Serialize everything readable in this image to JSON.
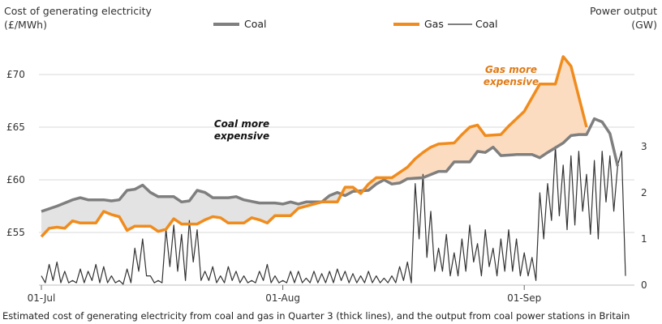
{
  "chart_data": {
    "type": "line",
    "y_left_title": [
      "Cost of generating electricity",
      "(£/MWh)"
    ],
    "y_right_title": [
      "Power output",
      "(GW)"
    ],
    "ylim_left": [
      50,
      72
    ],
    "ylim_right": [
      0,
      3.2
    ],
    "y_left_ticks": [
      {
        "value": 55,
        "label": "£55"
      },
      {
        "value": 60,
        "label": "£60"
      },
      {
        "value": 65,
        "label": "£65"
      },
      {
        "value": 70,
        "label": "£70"
      }
    ],
    "y_right_ticks": [
      {
        "value": 0,
        "label": "0"
      },
      {
        "value": 1,
        "label": "1"
      },
      {
        "value": 2,
        "label": "2"
      },
      {
        "value": 3,
        "label": "3"
      }
    ],
    "x_ticks": [
      {
        "day": 0,
        "label": "01-Jul"
      },
      {
        "day": 31,
        "label": "01-Aug"
      },
      {
        "day": 62,
        "label": "01-Sep"
      }
    ],
    "xlim_days": [
      0,
      76
    ],
    "legend": {
      "coal_cost": "Coal",
      "gas_cost": "Gas",
      "coal_output": "Coal"
    },
    "colors": {
      "coal": "#7f7f7f",
      "gas": "#f08c1e",
      "output": "#333333",
      "coal_expensive_fill": "#e3e3e3",
      "gas_expensive_fill": "#fbdcc0",
      "gas_annotation": "#e07a14"
    },
    "annotations": {
      "coal_more_expensive": [
        "Coal more",
        "expensive"
      ],
      "gas_more_expensive": [
        "Gas more",
        "expensive"
      ]
    },
    "coal_series": [
      {
        "day": 0,
        "value": 57.0
      },
      {
        "day": 2,
        "value": 57.5
      },
      {
        "day": 4,
        "value": 58.1
      },
      {
        "day": 5,
        "value": 58.3
      },
      {
        "day": 6,
        "value": 58.1
      },
      {
        "day": 8,
        "value": 58.1
      },
      {
        "day": 9,
        "value": 58.0
      },
      {
        "day": 10,
        "value": 58.1
      },
      {
        "day": 11,
        "value": 59.0
      },
      {
        "day": 12,
        "value": 59.1
      },
      {
        "day": 13,
        "value": 59.5
      },
      {
        "day": 14,
        "value": 58.8
      },
      {
        "day": 15,
        "value": 58.4
      },
      {
        "day": 17,
        "value": 58.4
      },
      {
        "day": 18,
        "value": 57.9
      },
      {
        "day": 19,
        "value": 58.0
      },
      {
        "day": 20,
        "value": 59.0
      },
      {
        "day": 21,
        "value": 58.8
      },
      {
        "day": 22,
        "value": 58.3
      },
      {
        "day": 24,
        "value": 58.3
      },
      {
        "day": 25,
        "value": 58.4
      },
      {
        "day": 26,
        "value": 58.1
      },
      {
        "day": 28,
        "value": 57.8
      },
      {
        "day": 30,
        "value": 57.8
      },
      {
        "day": 31,
        "value": 57.7
      },
      {
        "day": 32,
        "value": 57.9
      },
      {
        "day": 33,
        "value": 57.7
      },
      {
        "day": 34,
        "value": 57.9
      },
      {
        "day": 36,
        "value": 57.9
      },
      {
        "day": 37,
        "value": 58.5
      },
      {
        "day": 38,
        "value": 58.8
      },
      {
        "day": 39,
        "value": 58.5
      },
      {
        "day": 40,
        "value": 58.9
      },
      {
        "day": 42,
        "value": 59.0
      },
      {
        "day": 43,
        "value": 59.6
      },
      {
        "day": 44,
        "value": 60.0
      },
      {
        "day": 45,
        "value": 59.6
      },
      {
        "day": 46,
        "value": 59.7
      },
      {
        "day": 47,
        "value": 60.1
      },
      {
        "day": 49,
        "value": 60.2
      },
      {
        "day": 50,
        "value": 60.5
      },
      {
        "day": 51,
        "value": 60.8
      },
      {
        "day": 52,
        "value": 60.8
      },
      {
        "day": 53,
        "value": 61.7
      },
      {
        "day": 55,
        "value": 61.7
      },
      {
        "day": 56,
        "value": 62.7
      },
      {
        "day": 57,
        "value": 62.6
      },
      {
        "day": 58,
        "value": 63.1
      },
      {
        "day": 59,
        "value": 62.3
      },
      {
        "day": 61,
        "value": 62.4
      },
      {
        "day": 62,
        "value": 62.4
      },
      {
        "day": 63,
        "value": 62.4
      },
      {
        "day": 64,
        "value": 62.1
      },
      {
        "day": 65,
        "value": 62.6
      },
      {
        "day": 67,
        "value": 63.5
      },
      {
        "day": 68,
        "value": 64.2
      },
      {
        "day": 69,
        "value": 64.3
      },
      {
        "day": 70,
        "value": 64.3
      },
      {
        "day": 71,
        "value": 65.8
      },
      {
        "day": 72,
        "value": 65.5
      },
      {
        "day": 73,
        "value": 64.4
      },
      {
        "day": 74,
        "value": 61.3
      }
    ],
    "gas_series": [
      {
        "day": 0,
        "value": 54.6
      },
      {
        "day": 1,
        "value": 55.4
      },
      {
        "day": 2,
        "value": 55.5
      },
      {
        "day": 3,
        "value": 55.4
      },
      {
        "day": 4,
        "value": 56.1
      },
      {
        "day": 5,
        "value": 55.9
      },
      {
        "day": 7,
        "value": 55.9
      },
      {
        "day": 8,
        "value": 57.0
      },
      {
        "day": 9,
        "value": 56.7
      },
      {
        "day": 10,
        "value": 56.5
      },
      {
        "day": 11,
        "value": 55.2
      },
      {
        "day": 12,
        "value": 55.6
      },
      {
        "day": 14,
        "value": 55.6
      },
      {
        "day": 15,
        "value": 55.1
      },
      {
        "day": 16,
        "value": 55.3
      },
      {
        "day": 17,
        "value": 56.3
      },
      {
        "day": 18,
        "value": 55.8
      },
      {
        "day": 20,
        "value": 55.8
      },
      {
        "day": 21,
        "value": 56.2
      },
      {
        "day": 22,
        "value": 56.5
      },
      {
        "day": 23,
        "value": 56.4
      },
      {
        "day": 24,
        "value": 55.9
      },
      {
        "day": 26,
        "value": 55.9
      },
      {
        "day": 27,
        "value": 56.4
      },
      {
        "day": 28,
        "value": 56.2
      },
      {
        "day": 29,
        "value": 55.9
      },
      {
        "day": 30,
        "value": 56.6
      },
      {
        "day": 32,
        "value": 56.6
      },
      {
        "day": 33,
        "value": 57.3
      },
      {
        "day": 35,
        "value": 57.7
      },
      {
        "day": 36,
        "value": 57.9
      },
      {
        "day": 38,
        "value": 57.9
      },
      {
        "day": 39,
        "value": 59.3
      },
      {
        "day": 40,
        "value": 59.3
      },
      {
        "day": 41,
        "value": 58.7
      },
      {
        "day": 42,
        "value": 59.6
      },
      {
        "day": 43,
        "value": 60.2
      },
      {
        "day": 45,
        "value": 60.2
      },
      {
        "day": 46,
        "value": 60.7
      },
      {
        "day": 47,
        "value": 61.2
      },
      {
        "day": 48,
        "value": 62.0
      },
      {
        "day": 49,
        "value": 62.6
      },
      {
        "day": 50,
        "value": 63.1
      },
      {
        "day": 51,
        "value": 63.4
      },
      {
        "day": 53,
        "value": 63.5
      },
      {
        "day": 54,
        "value": 64.3
      },
      {
        "day": 55,
        "value": 65.0
      },
      {
        "day": 56,
        "value": 65.2
      },
      {
        "day": 57,
        "value": 64.2
      },
      {
        "day": 59,
        "value": 64.3
      },
      {
        "day": 60,
        "value": 65.1
      },
      {
        "day": 61,
        "value": 65.8
      },
      {
        "day": 62,
        "value": 66.5
      },
      {
        "day": 63,
        "value": 67.8
      },
      {
        "day": 64,
        "value": 69.1
      },
      {
        "day": 66,
        "value": 69.1
      },
      {
        "day": 67,
        "value": 71.7
      },
      {
        "day": 68,
        "value": 70.8
      },
      {
        "day": 69,
        "value": 67.9
      },
      {
        "day": 70,
        "value": 65.0
      }
    ],
    "output_series": [
      {
        "day": 0,
        "value": 0.2
      },
      {
        "day": 0.5,
        "value": 0.05
      },
      {
        "day": 1,
        "value": 0.45
      },
      {
        "day": 1.5,
        "value": 0.1
      },
      {
        "day": 2,
        "value": 0.5
      },
      {
        "day": 2.5,
        "value": 0.05
      },
      {
        "day": 3,
        "value": 0.3
      },
      {
        "day": 3.5,
        "value": 0.05
      },
      {
        "day": 4,
        "value": 0.1
      },
      {
        "day": 4.5,
        "value": 0.05
      },
      {
        "day": 5,
        "value": 0.35
      },
      {
        "day": 5.5,
        "value": 0.05
      },
      {
        "day": 6,
        "value": 0.3
      },
      {
        "day": 6.5,
        "value": 0.1
      },
      {
        "day": 7,
        "value": 0.45
      },
      {
        "day": 7.5,
        "value": 0.05
      },
      {
        "day": 8,
        "value": 0.4
      },
      {
        "day": 8.5,
        "value": 0.05
      },
      {
        "day": 9,
        "value": 0.2
      },
      {
        "day": 9.5,
        "value": 0.05
      },
      {
        "day": 10,
        "value": 0.1
      },
      {
        "day": 10.5,
        "value": 0.02
      },
      {
        "day": 11,
        "value": 0.35
      },
      {
        "day": 11.5,
        "value": 0.05
      },
      {
        "day": 12,
        "value": 0.8
      },
      {
        "day": 12.5,
        "value": 0.3
      },
      {
        "day": 13,
        "value": 1.0
      },
      {
        "day": 13.5,
        "value": 0.2
      },
      {
        "day": 14,
        "value": 0.2
      },
      {
        "day": 14.5,
        "value": 0.05
      },
      {
        "day": 15,
        "value": 0.1
      },
      {
        "day": 15.5,
        "value": 0.05
      },
      {
        "day": 16,
        "value": 1.2
      },
      {
        "day": 16.5,
        "value": 0.4
      },
      {
        "day": 17,
        "value": 1.3
      },
      {
        "day": 17.5,
        "value": 0.3
      },
      {
        "day": 18,
        "value": 1.1
      },
      {
        "day": 18.5,
        "value": 0.1
      },
      {
        "day": 19,
        "value": 1.4
      },
      {
        "day": 19.5,
        "value": 0.5
      },
      {
        "day": 20,
        "value": 1.2
      },
      {
        "day": 20.5,
        "value": 0.1
      },
      {
        "day": 21,
        "value": 0.3
      },
      {
        "day": 21.5,
        "value": 0.1
      },
      {
        "day": 22,
        "value": 0.4
      },
      {
        "day": 22.5,
        "value": 0.05
      },
      {
        "day": 23,
        "value": 0.2
      },
      {
        "day": 23.5,
        "value": 0.05
      },
      {
        "day": 24,
        "value": 0.4
      },
      {
        "day": 24.5,
        "value": 0.1
      },
      {
        "day": 25,
        "value": 0.3
      },
      {
        "day": 25.5,
        "value": 0.05
      },
      {
        "day": 26,
        "value": 0.2
      },
      {
        "day": 26.5,
        "value": 0.05
      },
      {
        "day": 27,
        "value": 0.1
      },
      {
        "day": 27.5,
        "value": 0.05
      },
      {
        "day": 28,
        "value": 0.3
      },
      {
        "day": 28.5,
        "value": 0.1
      },
      {
        "day": 29,
        "value": 0.45
      },
      {
        "day": 29.5,
        "value": 0.05
      },
      {
        "day": 30,
        "value": 0.2
      },
      {
        "day": 30.5,
        "value": 0.05
      },
      {
        "day": 31,
        "value": 0.1
      },
      {
        "day": 31.5,
        "value": 0.05
      },
      {
        "day": 32,
        "value": 0.3
      },
      {
        "day": 32.5,
        "value": 0.05
      },
      {
        "day": 33,
        "value": 0.3
      },
      {
        "day": 33.5,
        "value": 0.05
      },
      {
        "day": 34,
        "value": 0.15
      },
      {
        "day": 34.5,
        "value": 0.05
      },
      {
        "day": 35,
        "value": 0.3
      },
      {
        "day": 35.5,
        "value": 0.05
      },
      {
        "day": 36,
        "value": 0.25
      },
      {
        "day": 36.5,
        "value": 0.05
      },
      {
        "day": 37,
        "value": 0.3
      },
      {
        "day": 37.5,
        "value": 0.05
      },
      {
        "day": 38,
        "value": 0.35
      },
      {
        "day": 38.5,
        "value": 0.1
      },
      {
        "day": 39,
        "value": 0.3
      },
      {
        "day": 39.5,
        "value": 0.05
      },
      {
        "day": 40,
        "value": 0.25
      },
      {
        "day": 40.5,
        "value": 0.05
      },
      {
        "day": 41,
        "value": 0.2
      },
      {
        "day": 41.5,
        "value": 0.05
      },
      {
        "day": 42,
        "value": 0.3
      },
      {
        "day": 42.5,
        "value": 0.05
      },
      {
        "day": 43,
        "value": 0.2
      },
      {
        "day": 43.5,
        "value": 0.05
      },
      {
        "day": 44,
        "value": 0.15
      },
      {
        "day": 44.5,
        "value": 0.05
      },
      {
        "day": 45,
        "value": 0.2
      },
      {
        "day": 45.5,
        "value": 0.05
      },
      {
        "day": 46,
        "value": 0.4
      },
      {
        "day": 46.5,
        "value": 0.1
      },
      {
        "day": 47,
        "value": 0.5
      },
      {
        "day": 47.5,
        "value": 0.05
      },
      {
        "day": 48,
        "value": 2.2
      },
      {
        "day": 48.5,
        "value": 1.0
      },
      {
        "day": 49,
        "value": 2.4
      },
      {
        "day": 49.5,
        "value": 0.6
      },
      {
        "day": 50,
        "value": 1.6
      },
      {
        "day": 50.5,
        "value": 0.3
      },
      {
        "day": 51,
        "value": 0.8
      },
      {
        "day": 51.5,
        "value": 0.3
      },
      {
        "day": 52,
        "value": 1.1
      },
      {
        "day": 52.5,
        "value": 0.2
      },
      {
        "day": 53,
        "value": 0.7
      },
      {
        "day": 53.5,
        "value": 0.2
      },
      {
        "day": 54,
        "value": 1.0
      },
      {
        "day": 54.5,
        "value": 0.3
      },
      {
        "day": 55,
        "value": 1.3
      },
      {
        "day": 55.5,
        "value": 0.5
      },
      {
        "day": 56,
        "value": 0.9
      },
      {
        "day": 56.5,
        "value": 0.2
      },
      {
        "day": 57,
        "value": 1.2
      },
      {
        "day": 57.5,
        "value": 0.4
      },
      {
        "day": 58,
        "value": 0.8
      },
      {
        "day": 58.5,
        "value": 0.2
      },
      {
        "day": 59,
        "value": 1.0
      },
      {
        "day": 59.5,
        "value": 0.3
      },
      {
        "day": 60,
        "value": 1.2
      },
      {
        "day": 60.5,
        "value": 0.3
      },
      {
        "day": 61,
        "value": 1.0
      },
      {
        "day": 61.5,
        "value": 0.2
      },
      {
        "day": 62,
        "value": 0.7
      },
      {
        "day": 62.5,
        "value": 0.2
      },
      {
        "day": 63,
        "value": 0.6
      },
      {
        "day": 63.5,
        "value": 0.1
      },
      {
        "day": 64,
        "value": 2.0
      },
      {
        "day": 64.5,
        "value": 1.0
      },
      {
        "day": 65,
        "value": 2.2
      },
      {
        "day": 65.5,
        "value": 1.4
      },
      {
        "day": 66,
        "value": 3.0
      },
      {
        "day": 66.5,
        "value": 1.5
      },
      {
        "day": 67,
        "value": 2.6
      },
      {
        "day": 67.5,
        "value": 1.2
      },
      {
        "day": 68,
        "value": 2.8
      },
      {
        "day": 68.5,
        "value": 1.3
      },
      {
        "day": 69,
        "value": 2.9
      },
      {
        "day": 69.5,
        "value": 1.6
      },
      {
        "day": 70,
        "value": 2.4
      },
      {
        "day": 70.5,
        "value": 1.1
      },
      {
        "day": 71,
        "value": 2.7
      },
      {
        "day": 71.5,
        "value": 1.0
      },
      {
        "day": 72,
        "value": 2.9
      },
      {
        "day": 72.5,
        "value": 1.8
      },
      {
        "day": 73,
        "value": 2.8
      },
      {
        "day": 73.5,
        "value": 1.6
      },
      {
        "day": 74,
        "value": 2.6
      },
      {
        "day": 74.5,
        "value": 2.9
      },
      {
        "day": 75,
        "value": 0.2
      }
    ]
  },
  "caption": "Estimated cost of generating electricity from coal and gas in Quarter 3 (thick lines), and the output from coal power stations in Britain"
}
